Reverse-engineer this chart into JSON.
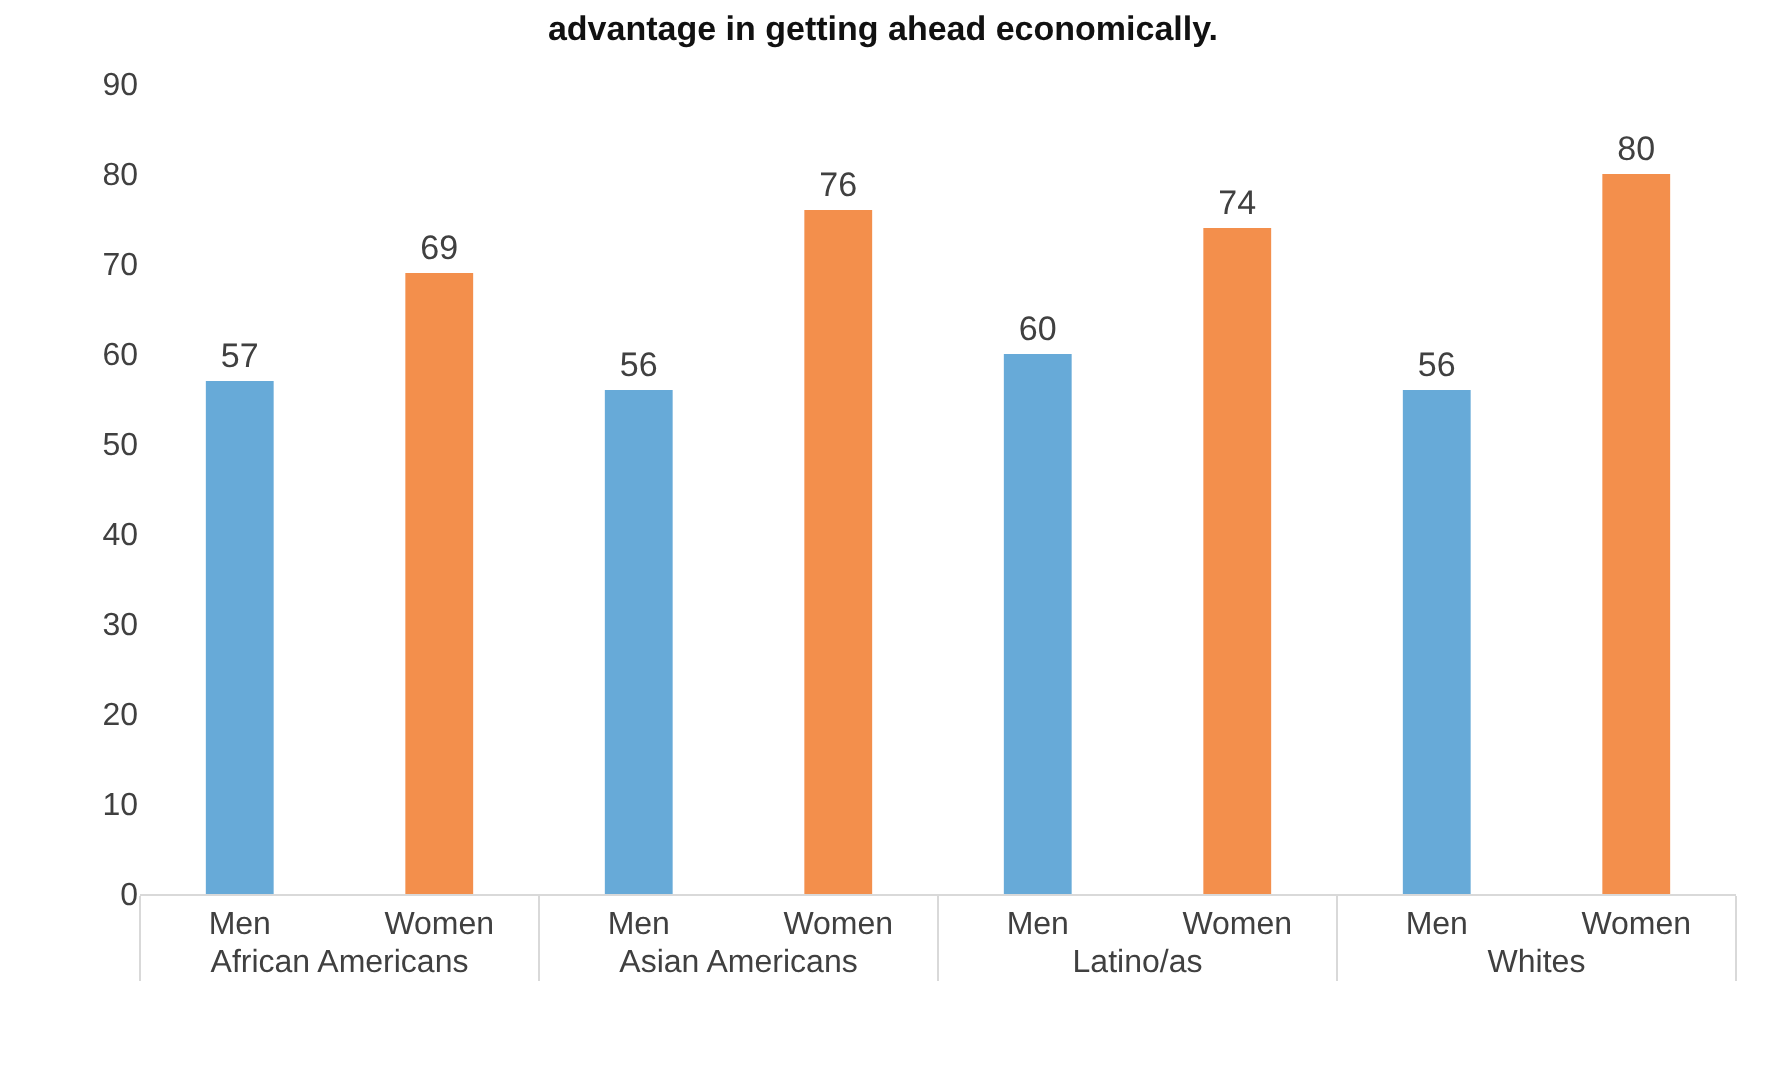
{
  "chart_data": {
    "type": "bar",
    "title": "advantage in getting ahead economically.",
    "categories": [
      "African Americans",
      "Asian Americans",
      "Latino/as",
      "Whites"
    ],
    "series": [
      {
        "name": "Men",
        "color": "#67aad8",
        "values": [
          57,
          56,
          60,
          56
        ]
      },
      {
        "name": "Women",
        "color": "#f38f4c",
        "values": [
          69,
          76,
          74,
          80
        ]
      }
    ],
    "ylim": [
      0,
      90
    ],
    "yticks": [
      0,
      10,
      20,
      30,
      40,
      50,
      60,
      70,
      80,
      90
    ],
    "data_labels": true,
    "grid": false,
    "legend": false
  }
}
